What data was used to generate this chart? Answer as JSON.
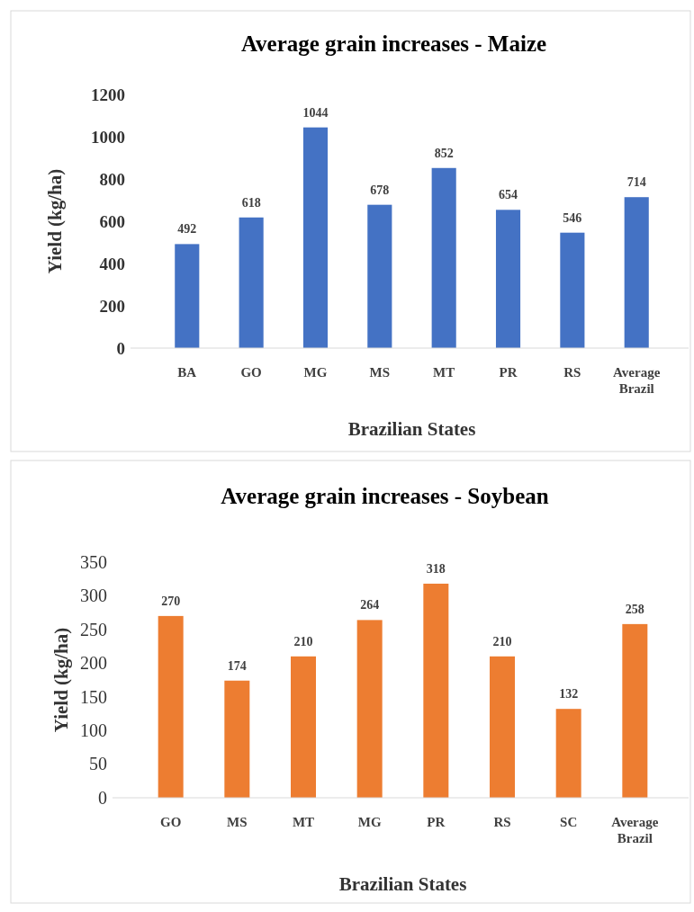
{
  "chart_data": [
    {
      "type": "bar",
      "title": "Average grain increases - Maize",
      "xlabel": "Brazilian States",
      "ylabel": "Yield (kg/ha)",
      "categories": [
        "BA",
        "GO",
        "MG",
        "MS",
        "MT",
        "PR",
        "RS",
        "Average Brazil"
      ],
      "values": [
        492,
        618,
        1044,
        678,
        852,
        654,
        546,
        714
      ],
      "color": "#4472c4",
      "ylim": [
        0,
        1200
      ],
      "yticks": [
        0,
        200,
        400,
        600,
        800,
        1000,
        1200
      ],
      "grid": false,
      "data_labels": true
    },
    {
      "type": "bar",
      "title": "Average grain increases - Soybean",
      "xlabel": "Brazilian States",
      "ylabel": "Yield (kg/ha)",
      "categories": [
        "GO",
        "MS",
        "MT",
        "MG",
        "PR",
        "RS",
        "SC",
        "Average Brazil"
      ],
      "values": [
        270,
        174,
        210,
        264,
        318,
        210,
        132,
        258
      ],
      "color": "#ed7d31",
      "ylim": [
        0,
        350
      ],
      "yticks": [
        0,
        50,
        100,
        150,
        200,
        250,
        300,
        350
      ],
      "grid": false,
      "data_labels": true
    }
  ]
}
